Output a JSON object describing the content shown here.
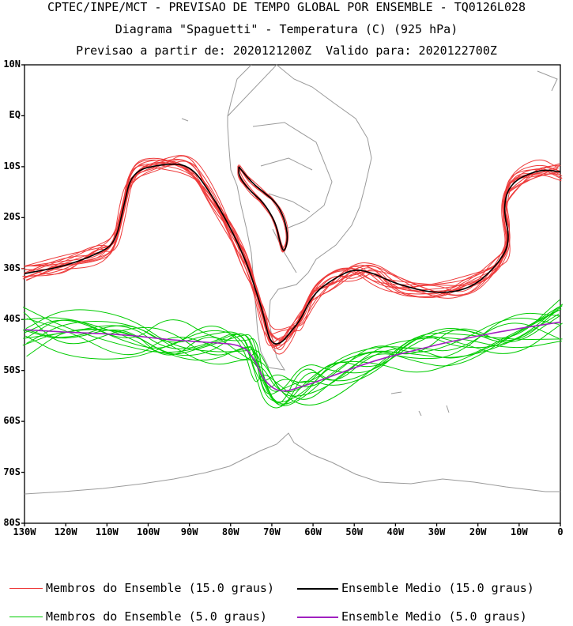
{
  "titles": {
    "line1": "CPTEC/INPE/MCT - PREVISAO DE TEMPO GLOBAL POR ENSEMBLE - TQ0126L028",
    "line2": "Diagrama \"Spaguetti\" - Temperatura (C) (925 hPa)",
    "line3": "Previsao a partir de: 2020121200Z  Valido para: 2020122700Z"
  },
  "lat_labels": [
    "10N",
    "EQ",
    "10S",
    "20S",
    "30S",
    "40S",
    "50S",
    "60S",
    "70S",
    "80S"
  ],
  "lon_labels": [
    "130W",
    "120W",
    "110W",
    "100W",
    "90W",
    "80W",
    "70W",
    "60W",
    "50W",
    "40W",
    "30W",
    "20W",
    "10W",
    "0"
  ],
  "legend": {
    "members15": {
      "label": "Membros do Ensemble (15.0 graus)",
      "color": "#ee3b3b"
    },
    "mean15": {
      "label": "Ensemble Medio (15.0 graus)",
      "color": "#000000"
    },
    "members5": {
      "label": "Membros do Ensemble (5.0 graus)",
      "color": "#00cc00"
    },
    "mean5": {
      "label": "Ensemble Medio (5.0 graus)",
      "color": "#a020c0"
    }
  },
  "colors": {
    "coast": "#9a9a9a",
    "frame": "#000000"
  },
  "map_extent": {
    "lon": [
      -130,
      0
    ],
    "lat": [
      -80,
      10
    ]
  },
  "isolines": {
    "mean15": [
      [
        -130,
        -31
      ],
      [
        -120,
        -29.5
      ],
      [
        -112,
        -27
      ],
      [
        -108,
        -25
      ],
      [
        -106,
        -18
      ],
      [
        -104,
        -11
      ],
      [
        -97,
        -9.5
      ],
      [
        -90,
        -9.5
      ],
      [
        -85,
        -15
      ],
      [
        -80,
        -22
      ],
      [
        -76,
        -29
      ],
      [
        -74,
        -34
      ],
      [
        -72,
        -39
      ],
      [
        -70.5,
        -44.5
      ],
      [
        -68,
        -45
      ],
      [
        -65,
        -42
      ],
      [
        -63,
        -40
      ],
      [
        -60,
        -35
      ],
      [
        -55,
        -32
      ],
      [
        -50,
        -30
      ],
      [
        -45,
        -31
      ],
      [
        -40,
        -33
      ],
      [
        -30,
        -35
      ],
      [
        -22,
        -34
      ],
      [
        -16,
        -30
      ],
      [
        -12,
        -25
      ],
      [
        -14,
        -18
      ],
      [
        -12,
        -13
      ],
      [
        -5,
        -10.5
      ],
      [
        0,
        -11
      ]
    ],
    "mean5": [
      [
        -130,
        -42
      ],
      [
        -120,
        -42.5
      ],
      [
        -105,
        -43
      ],
      [
        -95,
        -44
      ],
      [
        -85,
        -44.5
      ],
      [
        -77,
        -45
      ],
      [
        -74,
        -48
      ],
      [
        -72,
        -52
      ],
      [
        -68,
        -54.5
      ],
      [
        -62,
        -53
      ],
      [
        -55,
        -51
      ],
      [
        -45,
        -48
      ],
      [
        -35,
        -46
      ],
      [
        -25,
        -44
      ],
      [
        -12,
        -42
      ],
      [
        0,
        -40.5
      ]
    ],
    "andes_loop": [
      [
        -78,
        -10
      ],
      [
        -75,
        -13
      ],
      [
        -72,
        -15
      ],
      [
        -69,
        -17
      ],
      [
        -67,
        -20
      ],
      [
        -66,
        -24
      ],
      [
        -67,
        -27
      ],
      [
        -68,
        -25
      ],
      [
        -69,
        -21
      ],
      [
        -72,
        -17
      ],
      [
        -75,
        -15
      ],
      [
        -78,
        -12
      ],
      [
        -78,
        -10
      ]
    ]
  }
}
